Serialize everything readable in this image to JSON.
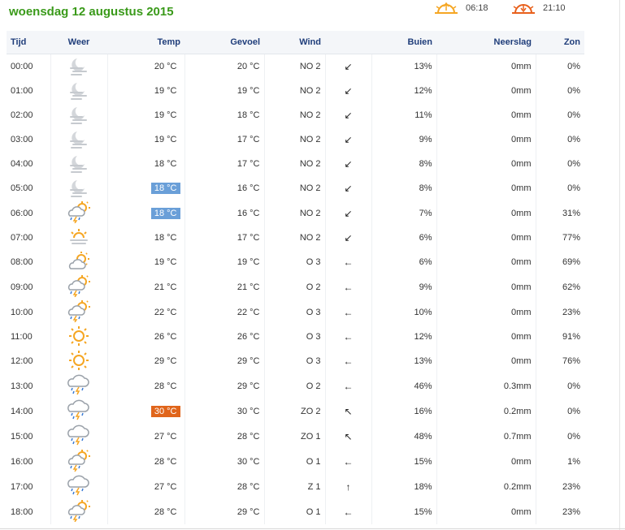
{
  "header": {
    "date_title": "woensdag 12 augustus 2015",
    "sunrise": {
      "icon": "sunrise-icon",
      "time": "06:18"
    },
    "sunset": {
      "icon": "sunset-icon",
      "time": "21:10"
    }
  },
  "table": {
    "columns": [
      "Tijd",
      "Weer",
      "Temp",
      "Gevoel",
      "Wind",
      "",
      "Buien",
      "Neerslag",
      "Zon"
    ],
    "rows": [
      {
        "time": "00:00",
        "icon": "moon-fog-icon",
        "temp": "20 °C",
        "temp_hl": "",
        "feel": "20 °C",
        "wind": "NO 2",
        "dir": "northeast-wind-arrow",
        "arrow": "↙",
        "buien": "13%",
        "neerslag": "0mm",
        "zon": "0%"
      },
      {
        "time": "01:00",
        "icon": "moon-fog-icon",
        "temp": "19 °C",
        "temp_hl": "",
        "feel": "19 °C",
        "wind": "NO 2",
        "dir": "northeast-wind-arrow",
        "arrow": "↙",
        "buien": "12%",
        "neerslag": "0mm",
        "zon": "0%"
      },
      {
        "time": "02:00",
        "icon": "moon-fog-icon",
        "temp": "19 °C",
        "temp_hl": "",
        "feel": "18 °C",
        "wind": "NO 2",
        "dir": "northeast-wind-arrow",
        "arrow": "↙",
        "buien": "11%",
        "neerslag": "0mm",
        "zon": "0%"
      },
      {
        "time": "03:00",
        "icon": "moon-fog-icon",
        "temp": "19 °C",
        "temp_hl": "",
        "feel": "17 °C",
        "wind": "NO 2",
        "dir": "northeast-wind-arrow",
        "arrow": "↙",
        "buien": "9%",
        "neerslag": "0mm",
        "zon": "0%"
      },
      {
        "time": "04:00",
        "icon": "moon-fog-icon",
        "temp": "18 °C",
        "temp_hl": "",
        "feel": "17 °C",
        "wind": "NO 2",
        "dir": "northeast-wind-arrow",
        "arrow": "↙",
        "buien": "8%",
        "neerslag": "0mm",
        "zon": "0%"
      },
      {
        "time": "05:00",
        "icon": "moon-fog-icon",
        "temp": "18 °C",
        "temp_hl": "blue",
        "feel": "16 °C",
        "wind": "NO 2",
        "dir": "northeast-wind-arrow",
        "arrow": "↙",
        "buien": "8%",
        "neerslag": "0mm",
        "zon": "0%"
      },
      {
        "time": "06:00",
        "icon": "sun-cloud-thunder-icon",
        "temp": "18 °C",
        "temp_hl": "blue",
        "feel": "16 °C",
        "wind": "NO 2",
        "dir": "northeast-wind-arrow",
        "arrow": "↙",
        "buien": "7%",
        "neerslag": "0mm",
        "zon": "31%"
      },
      {
        "time": "07:00",
        "icon": "sun-haze-icon",
        "temp": "18 °C",
        "temp_hl": "",
        "feel": "17 °C",
        "wind": "NO 2",
        "dir": "northeast-wind-arrow",
        "arrow": "↙",
        "buien": "6%",
        "neerslag": "0mm",
        "zon": "77%"
      },
      {
        "time": "08:00",
        "icon": "sun-cloud-icon",
        "temp": "19 °C",
        "temp_hl": "",
        "feel": "19 °C",
        "wind": "O 3",
        "dir": "east-wind-arrow",
        "arrow": "←",
        "buien": "6%",
        "neerslag": "0mm",
        "zon": "69%"
      },
      {
        "time": "09:00",
        "icon": "sun-cloud-thunder-icon",
        "temp": "21 °C",
        "temp_hl": "",
        "feel": "21 °C",
        "wind": "O 2",
        "dir": "east-wind-arrow",
        "arrow": "←",
        "buien": "9%",
        "neerslag": "0mm",
        "zon": "62%"
      },
      {
        "time": "10:00",
        "icon": "sun-cloud-thunder-icon",
        "temp": "22 °C",
        "temp_hl": "",
        "feel": "22 °C",
        "wind": "O 3",
        "dir": "east-wind-arrow",
        "arrow": "←",
        "buien": "10%",
        "neerslag": "0mm",
        "zon": "23%"
      },
      {
        "time": "11:00",
        "icon": "sun-icon",
        "temp": "26 °C",
        "temp_hl": "",
        "feel": "26 °C",
        "wind": "O 3",
        "dir": "east-wind-arrow",
        "arrow": "←",
        "buien": "12%",
        "neerslag": "0mm",
        "zon": "91%"
      },
      {
        "time": "12:00",
        "icon": "sun-icon",
        "temp": "29 °C",
        "temp_hl": "",
        "feel": "29 °C",
        "wind": "O 3",
        "dir": "east-wind-arrow",
        "arrow": "←",
        "buien": "13%",
        "neerslag": "0mm",
        "zon": "76%"
      },
      {
        "time": "13:00",
        "icon": "cloud-rain-thunder-icon",
        "temp": "28 °C",
        "temp_hl": "",
        "feel": "29 °C",
        "wind": "O 2",
        "dir": "east-wind-arrow",
        "arrow": "←",
        "buien": "46%",
        "neerslag": "0.3mm",
        "zon": "0%"
      },
      {
        "time": "14:00",
        "icon": "cloud-rain-thunder-icon",
        "temp": "30 °C",
        "temp_hl": "orange",
        "feel": "30 °C",
        "wind": "ZO 2",
        "dir": "southeast-wind-arrow",
        "arrow": "↖",
        "buien": "16%",
        "neerslag": "0.2mm",
        "zon": "0%"
      },
      {
        "time": "15:00",
        "icon": "cloud-rain-thunder-icon",
        "temp": "27 °C",
        "temp_hl": "",
        "feel": "28 °C",
        "wind": "ZO 1",
        "dir": "southeast-wind-arrow",
        "arrow": "↖",
        "buien": "48%",
        "neerslag": "0.7mm",
        "zon": "0%"
      },
      {
        "time": "16:00",
        "icon": "sun-cloud-thunder-icon",
        "temp": "28 °C",
        "temp_hl": "",
        "feel": "30 °C",
        "wind": "O 1",
        "dir": "east-wind-arrow",
        "arrow": "←",
        "buien": "15%",
        "neerslag": "0mm",
        "zon": "1%"
      },
      {
        "time": "17:00",
        "icon": "cloud-rain-thunder-icon",
        "temp": "27 °C",
        "temp_hl": "",
        "feel": "28 °C",
        "wind": "Z 1",
        "dir": "south-wind-arrow",
        "arrow": "↑",
        "buien": "18%",
        "neerslag": "0.2mm",
        "zon": "23%"
      },
      {
        "time": "18:00",
        "icon": "sun-cloud-thunder-icon",
        "temp": "28 °C",
        "temp_hl": "",
        "feel": "29 °C",
        "wind": "O 1",
        "dir": "east-wind-arrow",
        "arrow": "←",
        "buien": "15%",
        "neerslag": "0mm",
        "zon": "23%"
      }
    ]
  },
  "colors": {
    "title_green": "#3a9a1a",
    "header_blue": "#1f3d7a",
    "highlight_blue": "#6a9fd8",
    "highlight_orange": "#e0651b",
    "sun_orange": "#f5a623"
  }
}
